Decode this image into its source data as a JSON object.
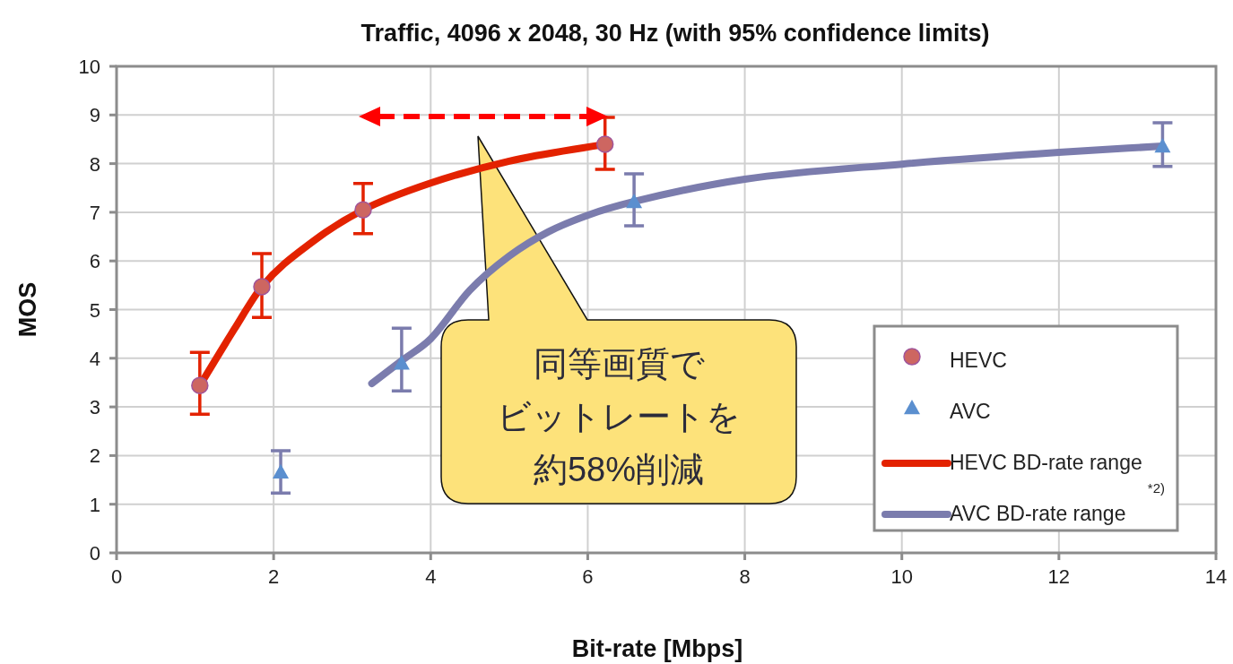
{
  "chart_data": {
    "type": "scatter",
    "title": "Traffic, 4096 x 2048, 30 Hz (with 95% confidence limits)",
    "xlabel": "Bit-rate [Mbps]",
    "ylabel": "MOS",
    "xlim": [
      0,
      14
    ],
    "xticks": [
      0,
      2,
      4,
      6,
      8,
      10,
      12,
      14
    ],
    "ylim": [
      0,
      10
    ],
    "yticks": [
      0,
      1,
      2,
      3,
      4,
      5,
      6,
      7,
      8,
      9,
      10
    ],
    "grid": true,
    "legend": "bottom right",
    "series": [
      {
        "name": "HEVC BD-rate range",
        "type": "line",
        "color": "#e32200",
        "marker": "none",
        "line_style": "solid",
        "x": [
          1.06,
          1.5,
          1.85,
          2.5,
          3.14,
          4.0,
          5.0,
          6.22
        ],
        "values": [
          3.44,
          4.6,
          5.47,
          6.4,
          7.05,
          7.6,
          8.05,
          8.4
        ]
      },
      {
        "name": "AVC BD-rate range",
        "type": "line",
        "color": "#7b7cad",
        "marker": "none",
        "line_style": "solid",
        "x": [
          3.25,
          3.63,
          4.0,
          4.5,
          5.0,
          5.5,
          6.0,
          6.59,
          8.0,
          10.0,
          12.0,
          13.32
        ],
        "values": [
          3.48,
          3.95,
          4.4,
          5.4,
          6.1,
          6.6,
          6.94,
          7.22,
          7.68,
          7.99,
          8.23,
          8.36
        ]
      },
      {
        "name": "HEVC",
        "color": "#cd6661",
        "marker": "circle",
        "x": [
          1.06,
          1.85,
          3.14,
          6.22
        ],
        "values": [
          3.44,
          5.47,
          7.05,
          8.4
        ],
        "errors": [
          [
            2.85,
            4.12
          ],
          [
            4.84,
            6.15
          ],
          [
            6.56,
            7.59
          ],
          [
            7.88,
            8.95
          ]
        ]
      },
      {
        "name": "AVC",
        "color": "#5b8fcf",
        "marker": "triangle",
        "x": [
          2.09,
          3.63,
          6.59,
          13.32
        ],
        "values": [
          1.66,
          3.9,
          7.22,
          8.36
        ],
        "errors": [
          [
            1.23,
            2.1
          ],
          [
            3.33,
            4.62
          ],
          [
            6.72,
            7.79
          ],
          [
            7.94,
            8.84
          ]
        ]
      }
    ],
    "annotations": [
      "同等画質で",
      "ビットレートを",
      "約58%削減",
      "*2)"
    ]
  }
}
